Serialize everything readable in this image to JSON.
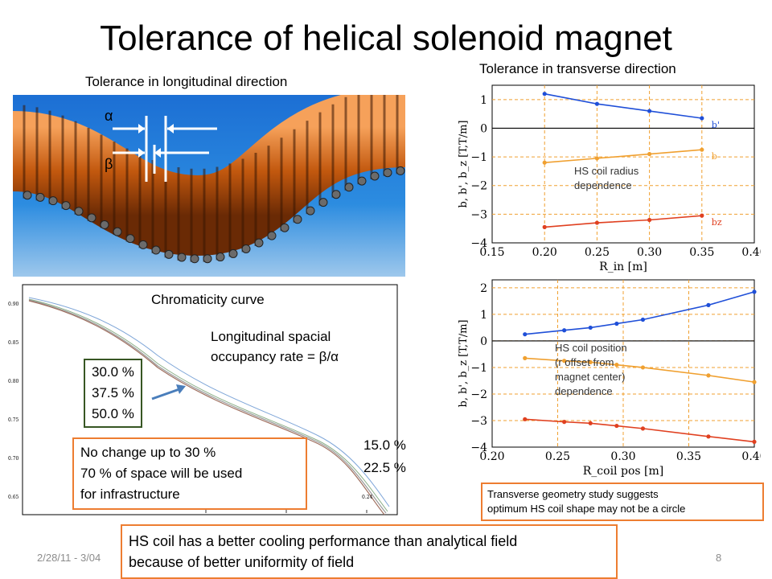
{
  "slide": {
    "title": "Tolerance of helical solenoid magnet",
    "footer_date": "2/28/11 - 3/04",
    "page_number": "8"
  },
  "longitudinal": {
    "heading": "Tolerance in longitudinal direction",
    "alpha_symbol": "α",
    "beta_symbol": "β"
  },
  "chromaticity": {
    "heading": "Chromaticity curve",
    "occupancy_text": "Longitudinal spacial\noccupancy rate = β/α",
    "rates_box": [
      "30.0 %",
      "37.5 %",
      "50.0 %"
    ],
    "rates_right": [
      "15.0 %",
      "22.5 %"
    ],
    "note": "No change up to 30 %\n70 % of space will be used\nfor infrastructure",
    "y_ticks": [
      "0.90",
      "0.85",
      "0.80",
      "0.75",
      "0.70",
      "0.65"
    ],
    "x_ticks": [
      "0.20",
      "0.22",
      "0.24"
    ]
  },
  "transverse": {
    "heading": "Tolerance in transverse direction",
    "note": "Transverse geometry study suggests\noptimum HS coil shape may not be a circle"
  },
  "cooling_note": "HS coil has a better cooling performance than analytical field\nbecause of better uniformity of field",
  "chart_data": [
    {
      "type": "line",
      "title": "",
      "annotation": "HS coil radius\ndependence",
      "xlabel": "R_in [m]",
      "ylabel": "b, b', b_z [T,T/m]",
      "xlim": [
        0.15,
        0.4
      ],
      "ylim": [
        -4,
        1.5
      ],
      "x_ticks": [
        "0.15",
        "0.20",
        "0.25",
        "0.30",
        "0.35",
        "0.40"
      ],
      "y_ticks": [
        "1",
        "0",
        "−1",
        "−2",
        "−3",
        "−4"
      ],
      "grid": true,
      "x": [
        0.2,
        0.25,
        0.3,
        0.35
      ],
      "series": [
        {
          "name": "b'",
          "color": "#1f4fd8",
          "values": [
            1.2,
            0.85,
            0.6,
            0.35
          ]
        },
        {
          "name": "b",
          "color": "#f0a030",
          "values": [
            -1.2,
            -1.05,
            -0.9,
            -0.75
          ]
        },
        {
          "name": "bz",
          "color": "#e04020",
          "values": [
            -3.45,
            -3.3,
            -3.2,
            -3.05
          ]
        }
      ]
    },
    {
      "type": "line",
      "title": "",
      "annotation": "HS coil position\n(r offset from\nmagnet center)\ndependence",
      "xlabel": "R_coil pos [m]",
      "ylabel": "b, b', b_z [T,T/m]",
      "xlim": [
        0.2,
        0.4
      ],
      "ylim": [
        -4,
        2.3
      ],
      "x_ticks": [
        "0.20",
        "0.25",
        "0.30",
        "0.35",
        "0.40"
      ],
      "y_ticks": [
        "2",
        "1",
        "0",
        "−1",
        "−2",
        "−3",
        "−4"
      ],
      "grid": true,
      "x": [
        0.225,
        0.255,
        0.275,
        0.295,
        0.315,
        0.365,
        0.4
      ],
      "series": [
        {
          "name": "b'",
          "color": "#1f4fd8",
          "values": [
            0.25,
            0.4,
            0.5,
            0.65,
            0.8,
            1.35,
            1.85
          ]
        },
        {
          "name": "b",
          "color": "#f0a030",
          "values": [
            -0.65,
            -0.75,
            -0.8,
            -0.9,
            -1.0,
            -1.3,
            -1.55
          ]
        },
        {
          "name": "bz",
          "color": "#e04020",
          "values": [
            -2.95,
            -3.05,
            -3.1,
            -3.2,
            -3.3,
            -3.6,
            -3.8
          ]
        }
      ]
    }
  ]
}
